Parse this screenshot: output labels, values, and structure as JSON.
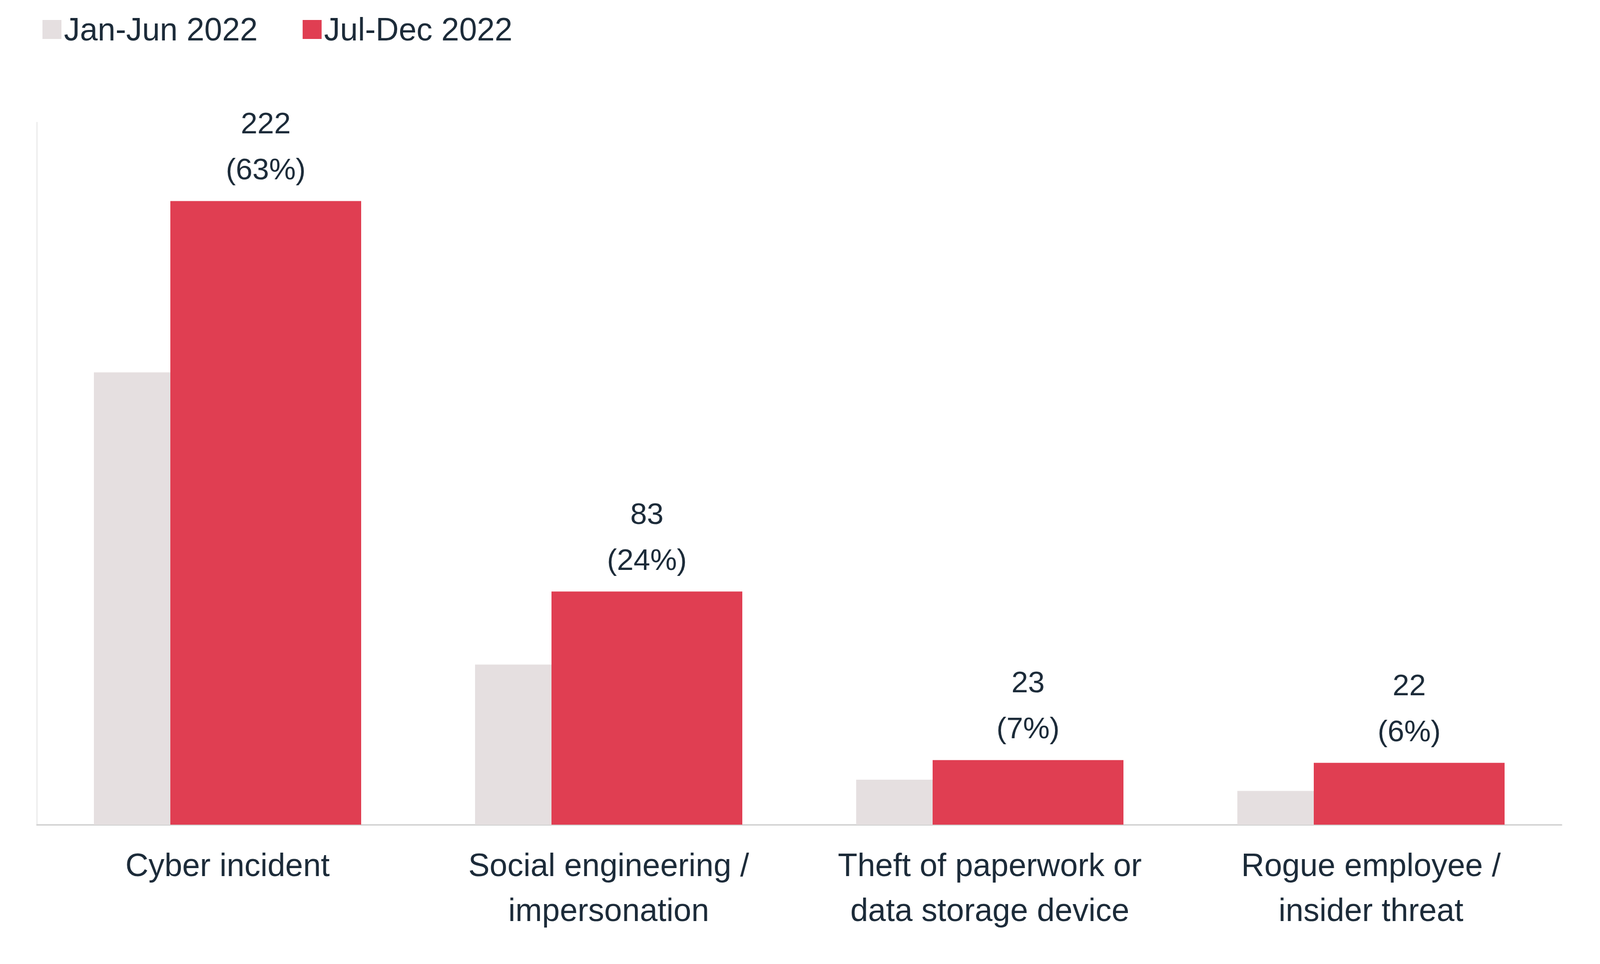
{
  "chart_data": {
    "type": "bar",
    "categories": [
      "Cyber incident",
      "Social engineering /\nimpersonation",
      "Theft of paperwork or\ndata storage device",
      "Rogue employee /\ninsider threat"
    ],
    "series": [
      {
        "name": "Jan-Jun 2022",
        "color": "#e5dfe0",
        "values": [
          161,
          57,
          16,
          12
        ],
        "data_labels": false
      },
      {
        "name": "Jul-Dec 2022",
        "color": "#e03e52",
        "values": [
          222,
          83,
          23,
          22
        ],
        "value_labels": [
          "222\n(63%)",
          "83\n(24%)",
          "23\n(7%)",
          "22\n(6%)"
        ],
        "data_labels": true
      }
    ],
    "ylim": [
      0,
      250
    ],
    "yticks": [],
    "tick_labels": "x",
    "grid": false,
    "legend": "top-left"
  }
}
